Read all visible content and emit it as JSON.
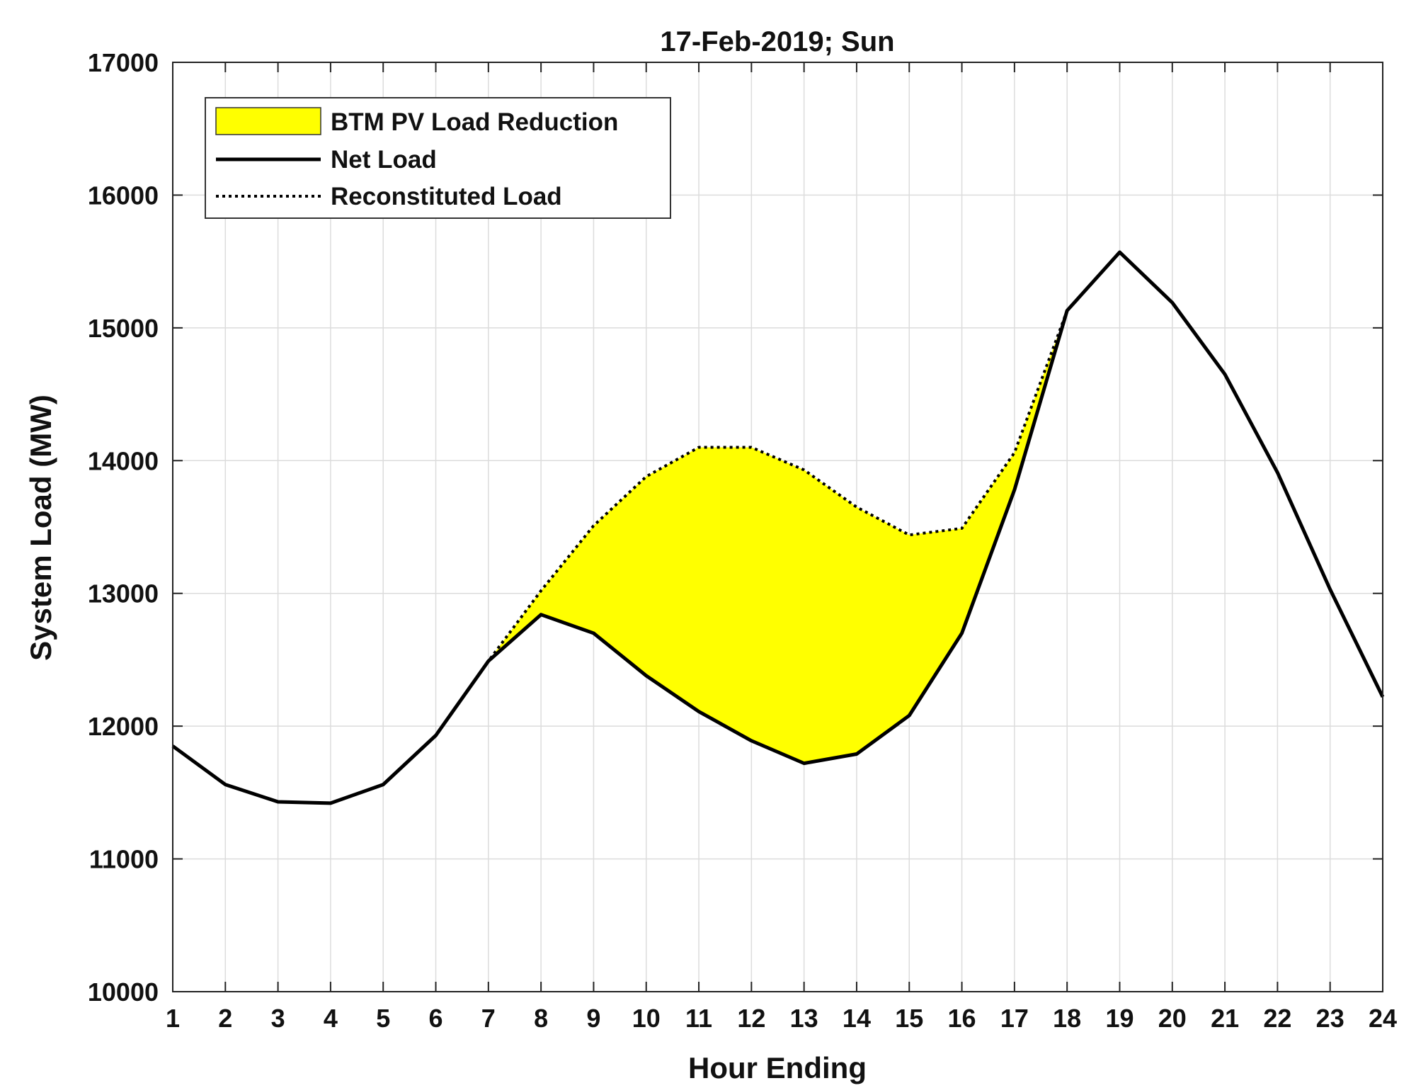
{
  "chart_data": {
    "type": "line",
    "title": "17-Feb-2019; Sun",
    "xlabel": "Hour Ending",
    "ylabel": "System Load (MW)",
    "xlim": [
      1,
      24
    ],
    "ylim": [
      10000,
      17000
    ],
    "x": [
      1,
      2,
      3,
      4,
      5,
      6,
      7,
      8,
      9,
      10,
      11,
      12,
      13,
      14,
      15,
      16,
      17,
      18,
      19,
      20,
      21,
      22,
      23,
      24
    ],
    "x_ticks": [
      "1",
      "2",
      "3",
      "4",
      "5",
      "6",
      "7",
      "8",
      "9",
      "10",
      "11",
      "12",
      "13",
      "14",
      "15",
      "16",
      "17",
      "18",
      "19",
      "20",
      "21",
      "22",
      "23",
      "24"
    ],
    "y_ticks": [
      "10000",
      "11000",
      "12000",
      "13000",
      "14000",
      "15000",
      "16000",
      "17000"
    ],
    "grid": true,
    "legend_position": "top-left",
    "series": [
      {
        "name": "Net Load",
        "style": "solid",
        "color": "#000000",
        "values": [
          11850,
          11560,
          11430,
          11420,
          11560,
          11930,
          12490,
          12840,
          12700,
          12380,
          12110,
          11890,
          11720,
          11790,
          12080,
          12700,
          13780,
          15130,
          15570,
          15190,
          14650,
          13910,
          13030,
          12220
        ]
      },
      {
        "name": "Reconstituted Load",
        "style": "dotted",
        "color": "#000000",
        "values": [
          11850,
          11560,
          11430,
          11420,
          11560,
          11930,
          12490,
          13020,
          13510,
          13880,
          14100,
          14100,
          13930,
          13650,
          13440,
          13490,
          14060,
          15130,
          15570,
          15190,
          14650,
          13910,
          13030,
          12220
        ]
      }
    ],
    "fill": {
      "name": "BTM PV Load Reduction",
      "color": "#ffff00",
      "between": [
        "Net Load",
        "Reconstituted Load"
      ]
    }
  }
}
